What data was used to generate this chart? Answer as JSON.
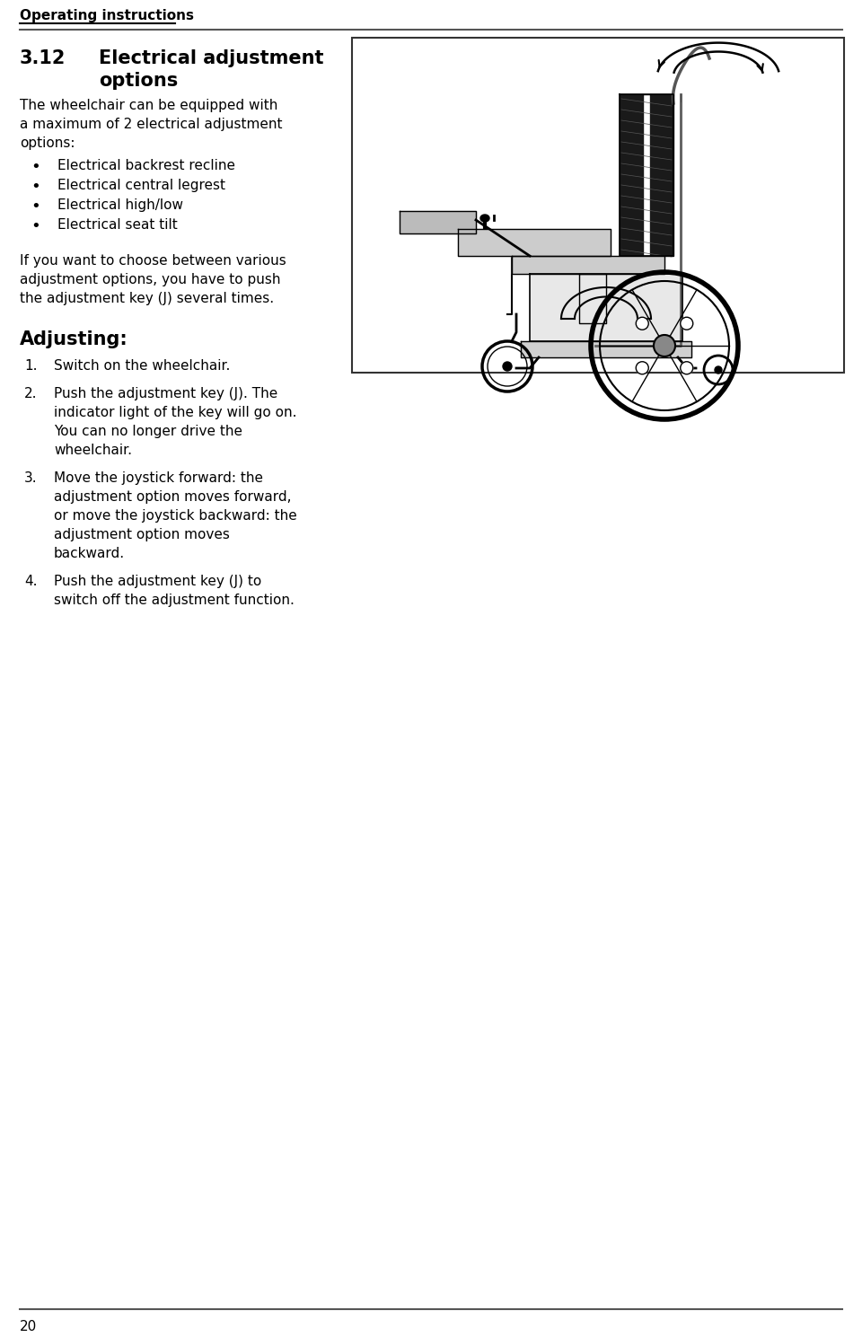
{
  "bg_color": "#ffffff",
  "header_text": "Operating instructions",
  "page_number": "20",
  "section_number": "3.12",
  "section_title_line1": "Electrical adjustment",
  "section_title_line2": "options",
  "body_intro": "The wheelchair can be equipped with\na maximum of 2 electrical adjustment\noptions:",
  "bullet_items": [
    "Electrical backrest recline",
    "Electrical central legrest",
    "Electrical high/low",
    "Electrical seat tilt"
  ],
  "body_paragraph": "If you want to choose between various\nadjustment options, you have to push\nthe adjustment key (J) several times.",
  "adjusting_header": "Adjusting:",
  "numbered_items": [
    "Switch on the wheelchair.",
    "Push the adjustment key (J). The\nindicator light of the key will go on.\nYou can no longer drive the\nwheelchair.",
    "Move the joystick forward: the\nadjustment option moves forward,\nor move the joystick backward: the\nadjustment option moves\nbackward.",
    "Push the adjustment key (J) to\nswitch off the adjustment function."
  ],
  "text_color": "#000000",
  "line_color": "#444444"
}
